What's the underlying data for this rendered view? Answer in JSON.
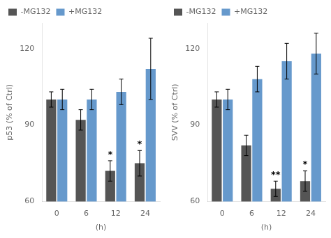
{
  "chart_data": [
    {
      "type": "bar",
      "categories": [
        "0",
        "6",
        "12",
        "24"
      ],
      "x_label": "(h)",
      "y_label": "p53 (% of Ctrl)",
      "ylim": [
        60,
        130
      ],
      "yticks": [
        60,
        90,
        120
      ],
      "grid": false,
      "legend": "upper left",
      "series": [
        {
          "name": "-MG132",
          "color": "#555555",
          "values": [
            100,
            92,
            72,
            75
          ],
          "errors": [
            3,
            4,
            4,
            5
          ]
        },
        {
          "name": "+MG132",
          "color": "#6699cc",
          "values": [
            100,
            100,
            103,
            112
          ],
          "errors": [
            4,
            4,
            5,
            12
          ]
        }
      ],
      "annotations": [
        {
          "category": "12",
          "series": "-MG132",
          "text": "*"
        },
        {
          "category": "24",
          "series": "-MG132",
          "text": "*"
        }
      ]
    },
    {
      "type": "bar",
      "categories": [
        "0",
        "6",
        "12",
        "24"
      ],
      "x_label": "(h)",
      "y_label": "SVV (% of Ctrl)",
      "ylim": [
        60,
        130
      ],
      "yticks": [
        60,
        90,
        120
      ],
      "grid": false,
      "legend": "upper left",
      "series": [
        {
          "name": "-MG132",
          "color": "#555555",
          "values": [
            100,
            82,
            65,
            68
          ],
          "errors": [
            3,
            4,
            3,
            4
          ]
        },
        {
          "name": "+MG132",
          "color": "#6699cc",
          "values": [
            100,
            108,
            115,
            118
          ],
          "errors": [
            4,
            5,
            7,
            8
          ]
        }
      ],
      "annotations": [
        {
          "category": "12",
          "series": "-MG132",
          "text": "**"
        },
        {
          "category": "24",
          "series": "-MG132",
          "text": "*"
        }
      ]
    }
  ]
}
